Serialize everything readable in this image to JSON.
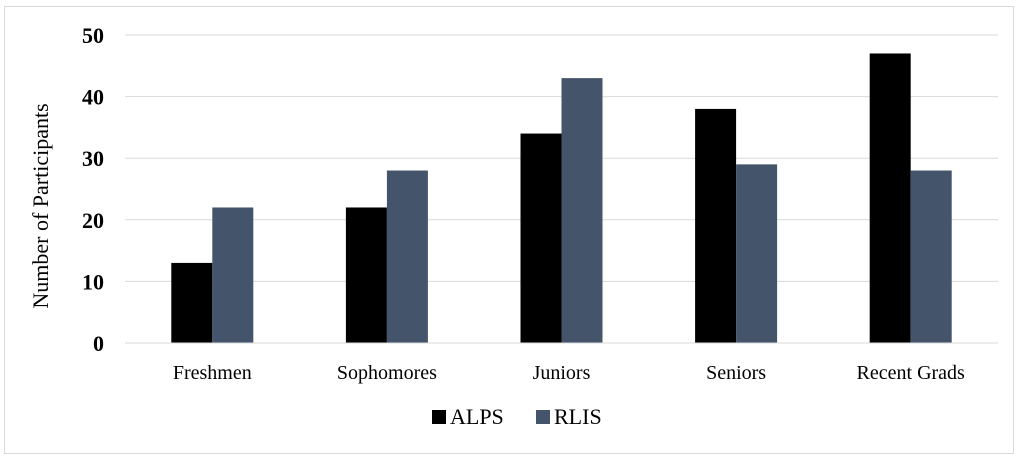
{
  "chart_data": {
    "type": "bar",
    "title": "",
    "xlabel": "",
    "ylabel": "Number of Participants",
    "ylim": [
      0,
      50
    ],
    "yticks": [
      0,
      10,
      20,
      30,
      40,
      50
    ],
    "grid": true,
    "legend_position": "bottom",
    "categories": [
      "Freshmen",
      "Sophomores",
      "Juniors",
      "Seniors",
      "Recent Grads"
    ],
    "series": [
      {
        "name": "ALPS",
        "color": "#000000",
        "values": [
          13,
          22,
          34,
          38,
          47
        ]
      },
      {
        "name": "RLIS",
        "color": "#44546a",
        "values": [
          22,
          28,
          43,
          29,
          28
        ]
      }
    ]
  }
}
